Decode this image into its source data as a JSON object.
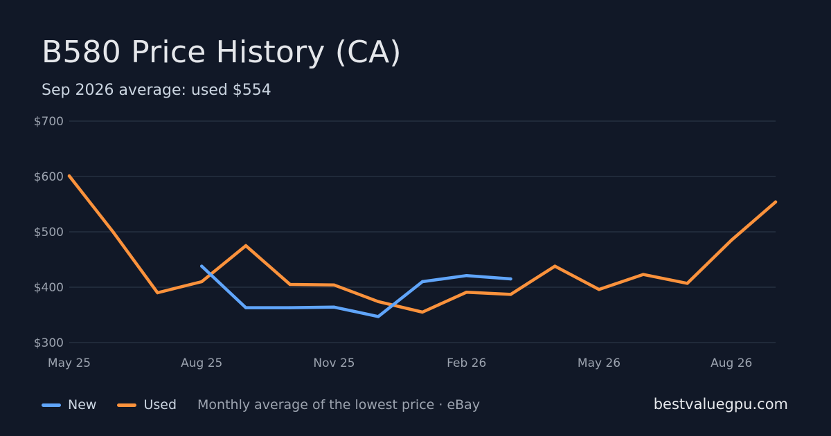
{
  "header": {
    "title": "B580 Price History (CA)",
    "subtitle": "Sep 2026 average: used $554"
  },
  "footer": {
    "caption": "Monthly average of the lowest price · eBay",
    "site": "bestvaluegpu.com"
  },
  "colors": {
    "background": "#111827",
    "grid": "#263041",
    "new": "#60a5fa",
    "used": "#fb923c",
    "tick_text": "#9ca3af"
  },
  "chart_data": {
    "type": "line",
    "x": [
      "May 25",
      "Jun 25",
      "Jul 25",
      "Aug 25",
      "Sep 25",
      "Oct 25",
      "Nov 25",
      "Dec 25",
      "Jan 26",
      "Feb 26",
      "Mar 26",
      "Apr 26",
      "May 26",
      "Jun 26",
      "Jul 26",
      "Aug 26",
      "Sep 26"
    ],
    "x_ticks": [
      "May 25",
      "Aug 25",
      "Nov 25",
      "Feb 26",
      "May 26",
      "Aug 26"
    ],
    "y_ticks": [
      "$300",
      "$400",
      "$500",
      "$600",
      "$700"
    ],
    "ylim": [
      300,
      700
    ],
    "grid": true,
    "legend": "bottom-left",
    "series": [
      {
        "name": "New",
        "color": "#60a5fa",
        "values": [
          null,
          null,
          null,
          438,
          363,
          363,
          364,
          347,
          410,
          421,
          415,
          null,
          null,
          null,
          null,
          null,
          null
        ]
      },
      {
        "name": "Used",
        "color": "#fb923c",
        "values": [
          601,
          499,
          390,
          410,
          475,
          405,
          404,
          374,
          355,
          391,
          387,
          438,
          396,
          423,
          407,
          485,
          554
        ]
      }
    ]
  }
}
